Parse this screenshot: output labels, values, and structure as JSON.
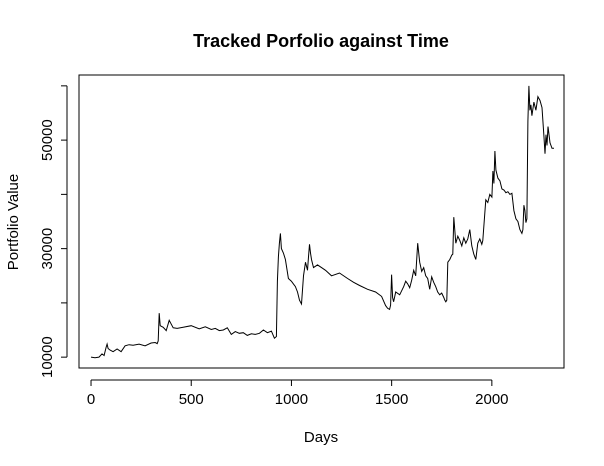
{
  "chart_data": {
    "type": "line",
    "title": "Tracked Porfolio against Time",
    "xlabel": "Days",
    "ylabel": "Portfolio Value",
    "xlim": [
      -60,
      2360
    ],
    "ylim": [
      8000,
      62000
    ],
    "xticks": [
      0,
      500,
      1000,
      1500,
      2000
    ],
    "yticks": [
      10000,
      30000,
      50000
    ],
    "grid": false,
    "series": [
      {
        "x": [
          0,
          20,
          40,
          55,
          65,
          75,
          80,
          85,
          95,
          110,
          130,
          150,
          170,
          190,
          210,
          240,
          270,
          300,
          320,
          330,
          335,
          340,
          345,
          360,
          375,
          390,
          410,
          430,
          460,
          500,
          540,
          570,
          600,
          620,
          640,
          660,
          680,
          700,
          720,
          740,
          760,
          780,
          800,
          820,
          840,
          860,
          880,
          900,
          915,
          925,
          930,
          935,
          940,
          945,
          950,
          960,
          970,
          985,
          1000,
          1010,
          1020,
          1030,
          1040,
          1050,
          1060,
          1070,
          1080,
          1085,
          1090,
          1095,
          1100,
          1110,
          1130,
          1150,
          1170,
          1200,
          1240,
          1280,
          1310,
          1340,
          1380,
          1420,
          1450,
          1470,
          1480,
          1490,
          1495,
          1500,
          1505,
          1510,
          1520,
          1540,
          1560,
          1570,
          1580,
          1590,
          1600,
          1610,
          1620,
          1630,
          1640,
          1650,
          1660,
          1670,
          1680,
          1690,
          1700,
          1710,
          1720,
          1730,
          1740,
          1750,
          1760,
          1765,
          1770,
          1775,
          1780,
          1790,
          1800,
          1805,
          1810,
          1820,
          1830,
          1840,
          1850,
          1860,
          1870,
          1880,
          1890,
          1900,
          1910,
          1920,
          1930,
          1940,
          1950,
          1955,
          1960,
          1970,
          1980,
          1990,
          2000,
          2005,
          2010,
          2015,
          2020,
          2030,
          2040,
          2050,
          2060,
          2070,
          2080,
          2090,
          2100,
          2110,
          2120,
          2130,
          2140,
          2150,
          2155,
          2160,
          2165,
          2170,
          2175,
          2180,
          2185,
          2190,
          2195,
          2200,
          2210,
          2220,
          2230,
          2240,
          2250,
          2260,
          2265,
          2270,
          2275,
          2280,
          2290,
          2300,
          2310
        ],
        "values": [
          10000,
          9900,
          10000,
          10600,
          10300,
          11800,
          12400,
          11600,
          11300,
          11000,
          11500,
          11000,
          12100,
          12300,
          12200,
          12400,
          12100,
          12600,
          12700,
          12500,
          13000,
          18100,
          15800,
          15500,
          14900,
          16800,
          15400,
          15300,
          15500,
          15800,
          15200,
          15600,
          15100,
          15300,
          14900,
          15000,
          15400,
          14200,
          14700,
          14400,
          14500,
          14000,
          14300,
          14200,
          14400,
          15000,
          14500,
          14800,
          13500,
          13800,
          24000,
          28500,
          31000,
          32800,
          30000,
          29200,
          28000,
          24500,
          24000,
          23500,
          23000,
          22000,
          20500,
          19800,
          25000,
          27500,
          26000,
          28500,
          30800,
          29200,
          28000,
          26500,
          27000,
          26500,
          26000,
          25000,
          25500,
          24500,
          23800,
          23200,
          22500,
          22000,
          21200,
          19500,
          19000,
          18800,
          19600,
          25200,
          21000,
          20200,
          22000,
          21500,
          23000,
          24000,
          23500,
          22800,
          24200,
          26000,
          25000,
          31000,
          27500,
          25800,
          26500,
          25000,
          24500,
          22500,
          24800,
          23800,
          23000,
          22000,
          21500,
          21800,
          21000,
          20500,
          20200,
          20500,
          27500,
          28000,
          28800,
          29000,
          35800,
          31000,
          32300,
          31500,
          30500,
          32000,
          31000,
          31800,
          33500,
          30500,
          29000,
          28000,
          31000,
          31800,
          30800,
          31500,
          34000,
          39000,
          38500,
          40000,
          39500,
          44300,
          42000,
          48000,
          44500,
          43000,
          42500,
          41000,
          40800,
          40300,
          40500,
          40000,
          40200,
          37000,
          35500,
          35000,
          33500,
          32800,
          33500,
          38000,
          37000,
          34800,
          35500,
          53500,
          60000,
          55500,
          56500,
          54500,
          57000,
          55500,
          58000,
          57300,
          56000,
          50500,
          47500,
          51000,
          49000,
          52500,
          49500,
          48500,
          48500
        ]
      }
    ]
  }
}
